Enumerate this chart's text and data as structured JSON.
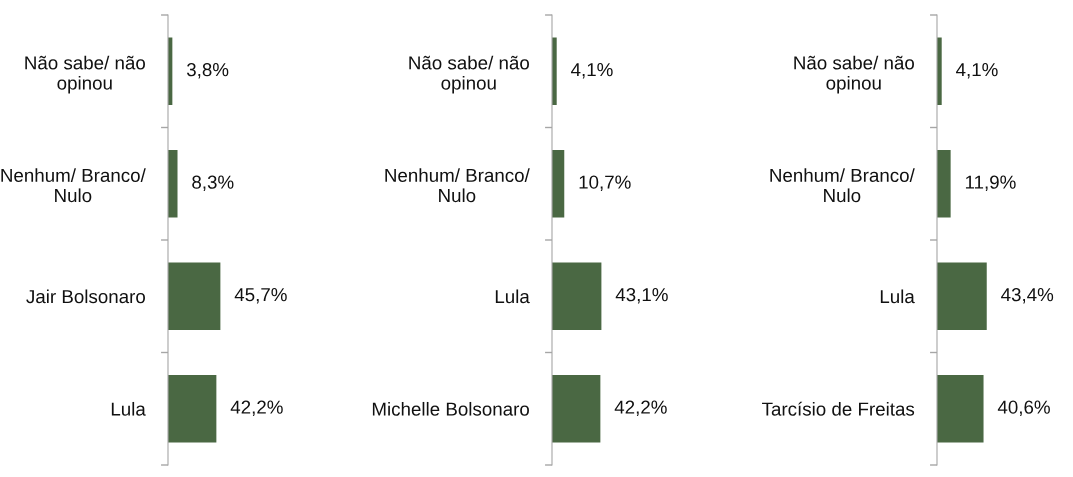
{
  "chart_data": [
    {
      "type": "bar",
      "orientation": "horizontal",
      "categories": [
        "Não sabe/ não\nopinou",
        "Nenhum/ Branco/\nNulo",
        "Jair Bolsonaro",
        "Lula"
      ],
      "values": [
        3.8,
        8.3,
        45.7,
        42.2
      ],
      "value_labels": [
        "3,8%",
        "8,3%",
        "45,7%",
        "42,2%"
      ],
      "color": "#4a6843",
      "tick_labels": "y"
    },
    {
      "type": "bar",
      "orientation": "horizontal",
      "categories": [
        "Não sabe/ não\nopinou",
        "Nenhum/ Branco/\nNulo",
        "Lula",
        "Michelle Bolsonaro"
      ],
      "values": [
        4.1,
        10.7,
        43.1,
        42.2
      ],
      "value_labels": [
        "4,1%",
        "10,7%",
        "43,1%",
        "42,2%"
      ],
      "color": "#4a6843",
      "tick_labels": "y"
    },
    {
      "type": "bar",
      "orientation": "horizontal",
      "categories": [
        "Não sabe/ não\nopinou",
        "Nenhum/ Branco/\nNulo",
        "Lula",
        "Tarcísio de Freitas"
      ],
      "values": [
        4.1,
        11.9,
        43.4,
        40.6
      ],
      "value_labels": [
        "4,1%",
        "11,9%",
        "43,4%",
        "40,6%"
      ],
      "color": "#4a6843",
      "tick_labels": "y"
    }
  ]
}
